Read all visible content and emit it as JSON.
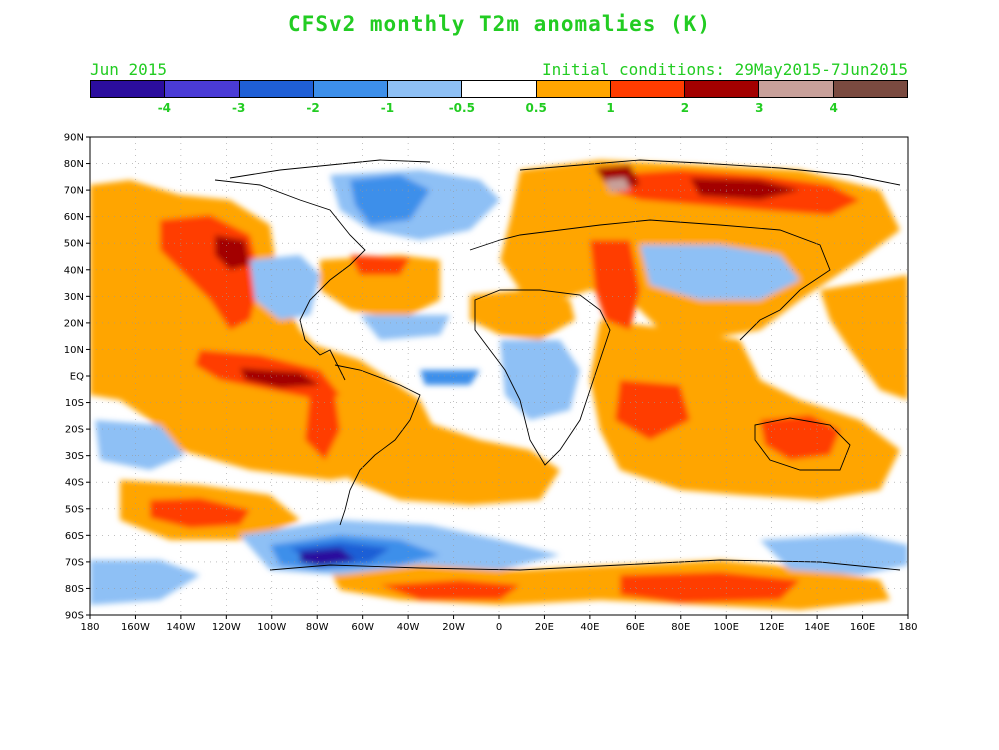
{
  "header": {
    "title": "CFSv2 monthly T2m anomalies (K)",
    "left_label": "Jun 2015",
    "right_label": "Initial conditions: 29May2015-7Jun2015"
  },
  "colorbar": {
    "colors": [
      "#2b0d9e",
      "#4a3bd6",
      "#1f5fd6",
      "#3d8fea",
      "#8ec0f5",
      "#ffffff",
      "#ffa500",
      "#ff3c00",
      "#a30000",
      "#c8a09a",
      "#7a4a40"
    ],
    "labels": [
      "-4",
      "-3",
      "-2",
      "-1",
      "-0.5",
      "0.5",
      "1",
      "2",
      "3",
      "4"
    ]
  },
  "map": {
    "lat_labels": [
      "90N",
      "80N",
      "70N",
      "60N",
      "50N",
      "40N",
      "30N",
      "20N",
      "10N",
      "EQ",
      "10S",
      "20S",
      "30S",
      "40S",
      "50S",
      "60S",
      "70S",
      "80S",
      "90S"
    ],
    "lon_labels": [
      "180",
      "160W",
      "140W",
      "120W",
      "100W",
      "80W",
      "60W",
      "40W",
      "20W",
      "0",
      "20E",
      "40E",
      "60E",
      "80E",
      "100E",
      "120E",
      "140E",
      "160E",
      "180"
    ]
  }
}
